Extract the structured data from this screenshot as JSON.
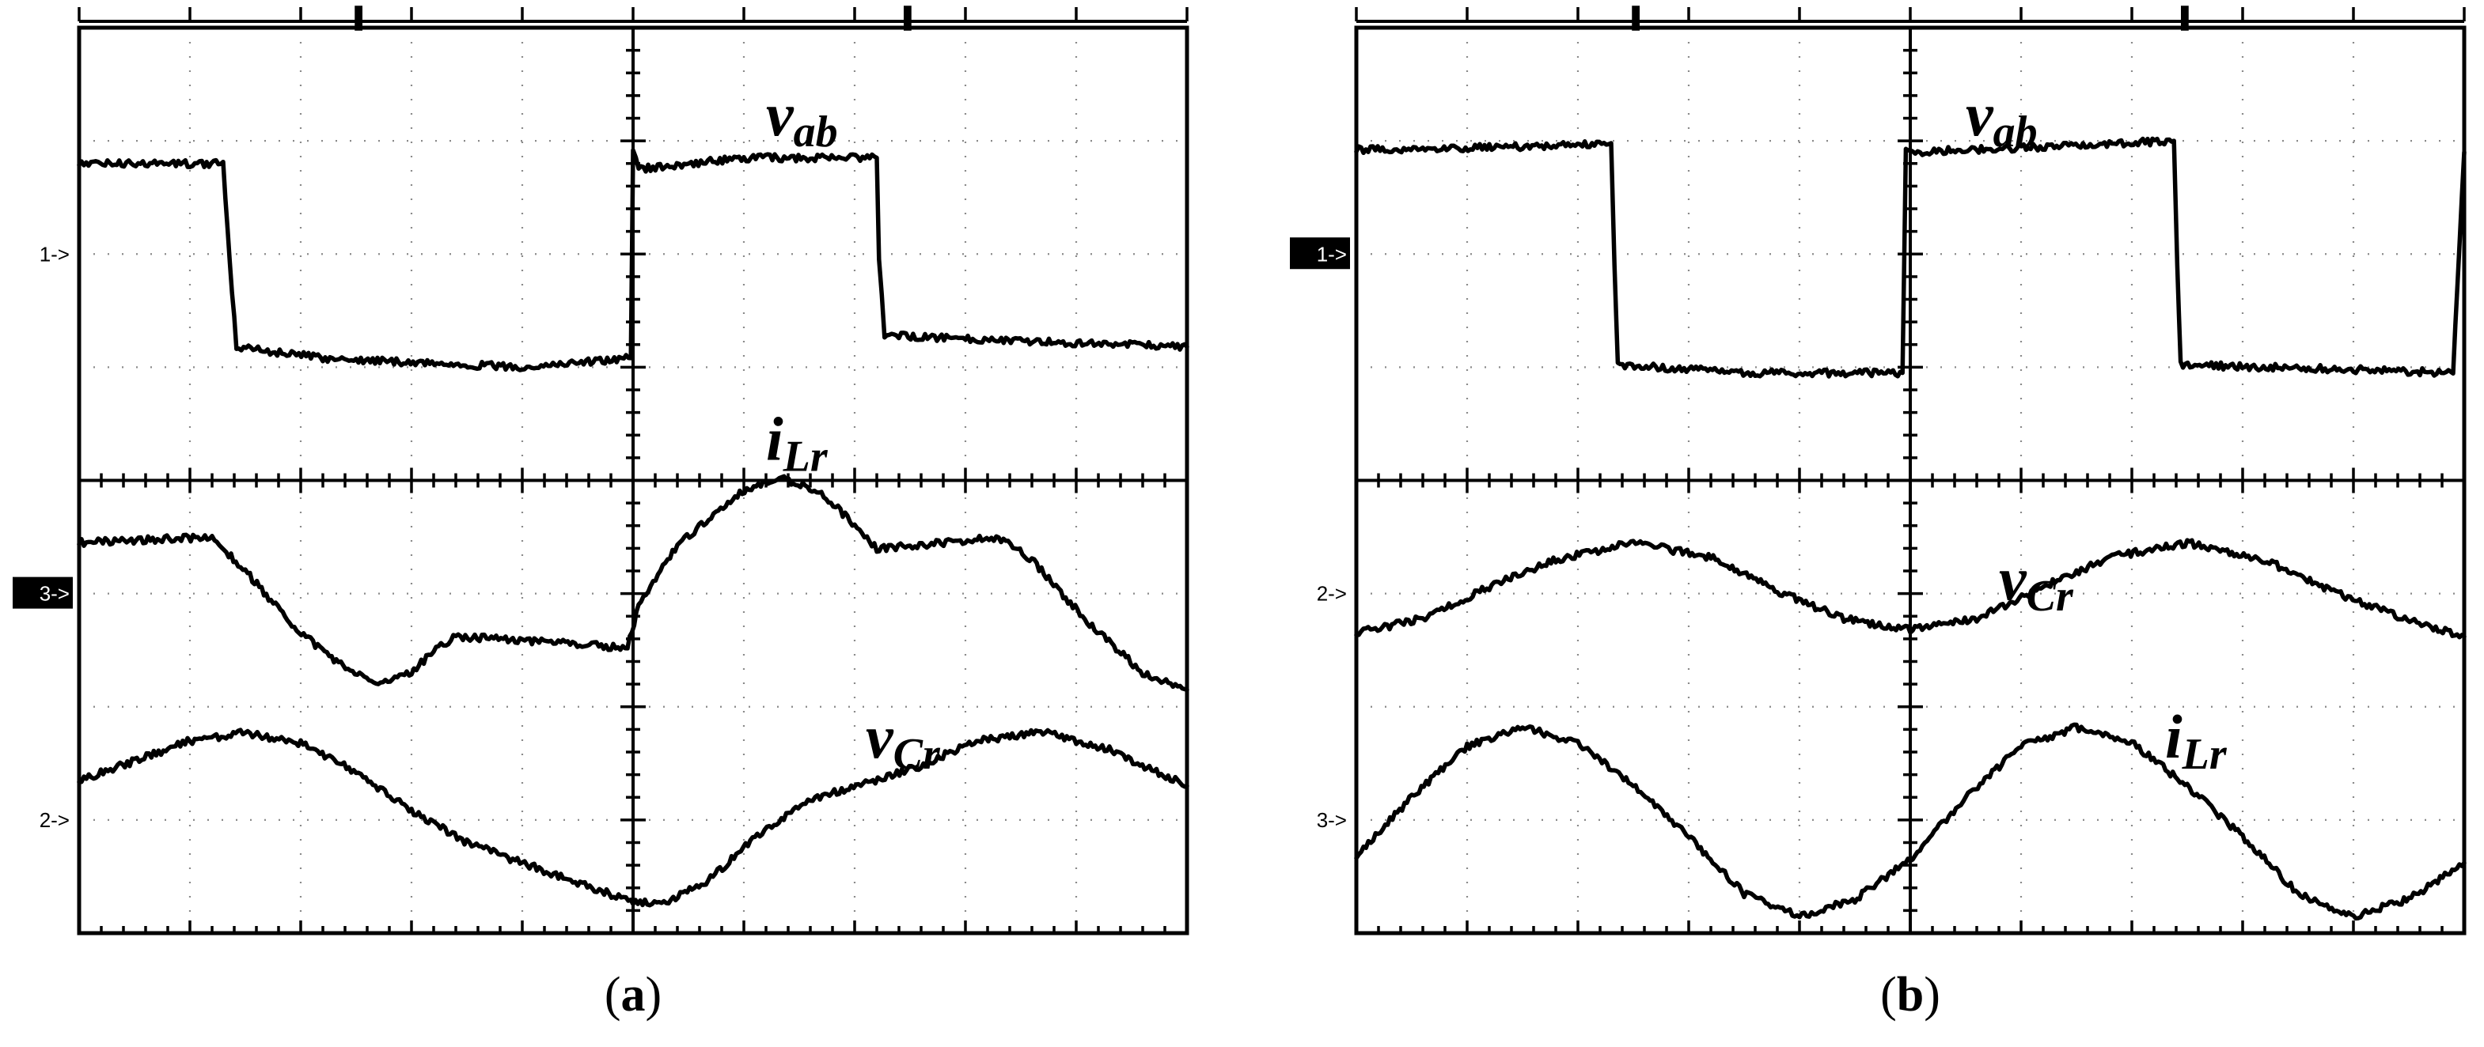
{
  "chart_data": [
    {
      "type": "line",
      "caption_letter": "a",
      "caption_open": "(",
      "caption_close": ")",
      "grid": true,
      "grid_divisions": [
        10,
        8
      ],
      "x": {
        "range": [
          0,
          10
        ],
        "unit": "div"
      },
      "y": {
        "range": [
          0,
          8
        ],
        "unit": "div"
      },
      "markers": [
        {
          "label": "1->",
          "y": 6.0,
          "highlighted": false
        },
        {
          "label": "3->",
          "y": 3.0,
          "highlighted": true
        },
        {
          "label": "2->",
          "y": 1.0,
          "highlighted": false
        }
      ],
      "series": [
        {
          "label_main": "v",
          "label_sub": "ab",
          "label_pos": [
            6.2,
            7.05
          ],
          "points": [
            [
              0,
              6.8
            ],
            [
              1.3,
              6.8
            ],
            [
              1.36,
              5.9
            ],
            [
              1.42,
              5.18
            ],
            [
              2.2,
              5.08
            ],
            [
              4.0,
              5.0
            ],
            [
              4.98,
              5.08
            ],
            [
              5.0,
              6.9
            ],
            [
              5.05,
              6.75
            ],
            [
              6.0,
              6.85
            ],
            [
              7.2,
              6.85
            ],
            [
              7.22,
              5.95
            ],
            [
              7.27,
              5.28
            ],
            [
              10,
              5.18
            ]
          ]
        },
        {
          "label_main": "i",
          "label_sub": "Lr",
          "label_pos": [
            6.2,
            4.18
          ],
          "points": [
            [
              0,
              3.45
            ],
            [
              1.2,
              3.5
            ],
            [
              1.5,
              3.2
            ],
            [
              1.9,
              2.75
            ],
            [
              2.3,
              2.4
            ],
            [
              2.7,
              2.2
            ],
            [
              3.0,
              2.3
            ],
            [
              3.2,
              2.5
            ],
            [
              3.4,
              2.62
            ],
            [
              3.85,
              2.6
            ],
            [
              4.95,
              2.52
            ],
            [
              5.05,
              2.9
            ],
            [
              5.4,
              3.42
            ],
            [
              5.9,
              3.85
            ],
            [
              6.3,
              4.03
            ],
            [
              6.7,
              3.9
            ],
            [
              7.0,
              3.6
            ],
            [
              7.2,
              3.4
            ],
            [
              7.5,
              3.42
            ],
            [
              8.3,
              3.5
            ],
            [
              8.6,
              3.3
            ],
            [
              9.1,
              2.75
            ],
            [
              9.6,
              2.3
            ],
            [
              10,
              2.15
            ]
          ]
        },
        {
          "label_main": "v",
          "label_sub": "Cr",
          "label_pos": [
            7.1,
            1.55
          ],
          "points": [
            [
              0,
              1.35
            ],
            [
              0.5,
              1.52
            ],
            [
              1.0,
              1.7
            ],
            [
              1.5,
              1.77
            ],
            [
              2.0,
              1.68
            ],
            [
              2.5,
              1.42
            ],
            [
              3.0,
              1.08
            ],
            [
              3.5,
              0.8
            ],
            [
              4.0,
              0.62
            ],
            [
              4.5,
              0.45
            ],
            [
              5.0,
              0.27
            ],
            [
              5.3,
              0.27
            ],
            [
              5.7,
              0.48
            ],
            [
              6.1,
              0.85
            ],
            [
              6.6,
              1.18
            ],
            [
              7.1,
              1.32
            ],
            [
              7.6,
              1.48
            ],
            [
              8.1,
              1.7
            ],
            [
              8.7,
              1.78
            ],
            [
              9.3,
              1.62
            ],
            [
              10,
              1.3
            ]
          ]
        }
      ]
    },
    {
      "type": "line",
      "caption_letter": "b",
      "caption_open": "(",
      "caption_close": ")",
      "grid": true,
      "grid_divisions": [
        10,
        8
      ],
      "x": {
        "range": [
          0,
          10
        ],
        "unit": "div"
      },
      "y": {
        "range": [
          0,
          8
        ],
        "unit": "div"
      },
      "markers": [
        {
          "label": "1->",
          "y": 6.0,
          "highlighted": true
        },
        {
          "label": "2->",
          "y": 3.0,
          "highlighted": false
        },
        {
          "label": "3->",
          "y": 1.0,
          "highlighted": false
        }
      ],
      "series": [
        {
          "label_main": "v",
          "label_sub": "ab",
          "label_pos": [
            5.5,
            7.05
          ],
          "points": [
            [
              0,
              6.92
            ],
            [
              1.5,
              6.95
            ],
            [
              2.3,
              6.98
            ],
            [
              2.33,
              5.9
            ],
            [
              2.36,
              5.02
            ],
            [
              3.6,
              4.95
            ],
            [
              4.93,
              4.95
            ],
            [
              4.96,
              6.9
            ],
            [
              6.3,
              6.95
            ],
            [
              7.38,
              7.0
            ],
            [
              7.41,
              5.9
            ],
            [
              7.44,
              5.02
            ],
            [
              9.0,
              4.98
            ],
            [
              9.9,
              4.95
            ],
            [
              10,
              6.9
            ]
          ]
        },
        {
          "label_main": "v",
          "label_sub": "Cr",
          "label_pos": [
            5.8,
            2.95
          ],
          "points": [
            [
              0,
              2.65
            ],
            [
              0.6,
              2.78
            ],
            [
              1.2,
              3.06
            ],
            [
              1.8,
              3.3
            ],
            [
              2.5,
              3.45
            ],
            [
              3.2,
              3.32
            ],
            [
              3.8,
              3.02
            ],
            [
              4.4,
              2.78
            ],
            [
              5.0,
              2.68
            ],
            [
              5.6,
              2.78
            ],
            [
              6.2,
              3.06
            ],
            [
              6.8,
              3.32
            ],
            [
              7.5,
              3.45
            ],
            [
              8.2,
              3.3
            ],
            [
              8.8,
              3.02
            ],
            [
              9.4,
              2.8
            ],
            [
              10,
              2.62
            ]
          ]
        },
        {
          "label_main": "i",
          "label_sub": "Lr",
          "label_pos": [
            7.3,
            1.55
          ],
          "points": [
            [
              0,
              0.68
            ],
            [
              0.5,
              1.2
            ],
            [
              1.0,
              1.65
            ],
            [
              1.5,
              1.82
            ],
            [
              2.0,
              1.68
            ],
            [
              2.5,
              1.3
            ],
            [
              3.0,
              0.85
            ],
            [
              3.5,
              0.35
            ],
            [
              4.0,
              0.15
            ],
            [
              4.5,
              0.3
            ],
            [
              5.0,
              0.65
            ],
            [
              5.5,
              1.2
            ],
            [
              6.0,
              1.65
            ],
            [
              6.5,
              1.82
            ],
            [
              7.0,
              1.68
            ],
            [
              7.5,
              1.3
            ],
            [
              8.0,
              0.85
            ],
            [
              8.5,
              0.35
            ],
            [
              9.0,
              0.15
            ],
            [
              9.5,
              0.3
            ],
            [
              10,
              0.62
            ]
          ]
        }
      ]
    }
  ]
}
